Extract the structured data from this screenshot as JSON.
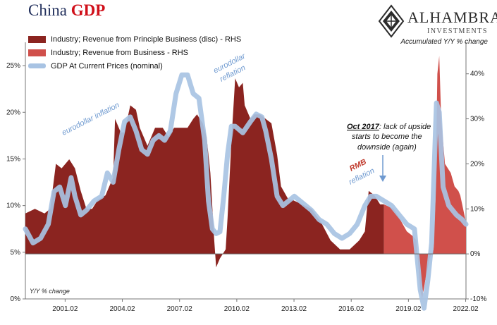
{
  "header": {
    "title_main": "China",
    "title_accent": "GDP"
  },
  "brand": {
    "name": "ALHAMBRA",
    "sub": "INVESTMENTS"
  },
  "labels": {
    "right_axis_title": "Accumulated Y/Y % change",
    "left_axis_title": "Y/Y % change"
  },
  "colors": {
    "principle_revenue": "#8b2420",
    "business_revenue": "#d0504b",
    "gdp_line": "#a8c3e3",
    "annotation_blue": "#6f9ad0",
    "annotation_red": "#c0392b",
    "title_blue": "#1f2d5a",
    "title_red": "#d0101a"
  },
  "chart_data": {
    "type": "area",
    "x_tick_labels": [
      "2001.02",
      "2004.02",
      "2007.02",
      "2010.02",
      "2013.02",
      "2016.02",
      "2019.02",
      "2022.02"
    ],
    "x_range": [
      1999.0,
      2022.1
    ],
    "y_left": {
      "ticks": [
        "0%",
        "5%",
        "10%",
        "15%",
        "20%",
        "25%"
      ],
      "range": [
        0,
        27.5
      ]
    },
    "y_right": {
      "ticks": [
        "-10%",
        "0%",
        "10%",
        "20%",
        "30%",
        "40%"
      ],
      "range": [
        -10,
        47
      ]
    },
    "grid": false,
    "legend_position": "top-left",
    "series": [
      {
        "name": "Industry; Revenue from Principle Business (disc) - RHS",
        "axis": "right",
        "style": "area",
        "points": [
          [
            1999.0,
            9.0
          ],
          [
            1999.5,
            10.0
          ],
          [
            2000.0,
            9.0
          ],
          [
            2000.3,
            10.0
          ],
          [
            2000.6,
            20.0
          ],
          [
            2000.9,
            19.0
          ],
          [
            2001.3,
            21.0
          ],
          [
            2001.6,
            19.0
          ],
          [
            2001.9,
            14.0
          ],
          [
            2002.2,
            10.0
          ],
          [
            2002.5,
            10.0
          ],
          [
            2002.8,
            12.0
          ],
          [
            2003.2,
            13.0
          ],
          [
            2003.6,
            17.0
          ],
          [
            2003.7,
            30.0
          ],
          [
            2004.0,
            27.0
          ],
          [
            2004.2,
            27.0
          ],
          [
            2004.5,
            33.0
          ],
          [
            2004.8,
            32.0
          ],
          [
            2005.0,
            28.0
          ],
          [
            2005.4,
            24.0
          ],
          [
            2005.8,
            28.0
          ],
          [
            2006.2,
            28.0
          ],
          [
            2006.5,
            26.0
          ],
          [
            2006.8,
            28.0
          ],
          [
            2007.2,
            28.0
          ],
          [
            2007.5,
            28.0
          ],
          [
            2007.8,
            30.0
          ],
          [
            2008.0,
            31.0
          ],
          [
            2008.3,
            29.0
          ],
          [
            2008.5,
            26.0
          ],
          [
            2008.7,
            18.0
          ],
          [
            2008.9,
            3.0
          ],
          [
            2009.0,
            -3.0
          ],
          [
            2009.2,
            -1.0
          ],
          [
            2009.5,
            1.0
          ],
          [
            2009.6,
            8.0
          ],
          [
            2009.8,
            25.0
          ],
          [
            2010.0,
            39.0
          ],
          [
            2010.2,
            37.0
          ],
          [
            2010.4,
            38.0
          ],
          [
            2010.5,
            33.0
          ],
          [
            2010.8,
            30.0
          ],
          [
            2011.0,
            31.0
          ],
          [
            2011.3,
            31.0
          ],
          [
            2011.6,
            30.0
          ],
          [
            2011.9,
            29.0
          ],
          [
            2012.2,
            22.0
          ],
          [
            2012.4,
            15.0
          ],
          [
            2012.8,
            12.0
          ],
          [
            2013.0,
            12.0
          ],
          [
            2013.5,
            11.0
          ],
          [
            2014.0,
            10.0
          ],
          [
            2014.5,
            7.0
          ],
          [
            2015.0,
            3.0
          ],
          [
            2015.5,
            1.0
          ],
          [
            2016.0,
            1.0
          ],
          [
            2016.5,
            3.0
          ],
          [
            2016.8,
            5.0
          ],
          [
            2017.0,
            14.0
          ],
          [
            2017.3,
            13.0
          ],
          [
            2017.6,
            11.0
          ],
          [
            2017.8,
            11.0
          ]
        ]
      },
      {
        "name": "Industry; Revenue from Business - RHS",
        "axis": "right",
        "style": "area",
        "points": [
          [
            2017.8,
            11.0
          ],
          [
            2018.3,
            10.0
          ],
          [
            2018.6,
            8.0
          ],
          [
            2019.0,
            5.0
          ],
          [
            2019.3,
            4.0
          ],
          [
            2019.5,
            3.0
          ],
          [
            2019.7,
            -8.0
          ],
          [
            2019.8,
            -10.0
          ],
          [
            2020.0,
            -5.0
          ],
          [
            2020.2,
            -1.0
          ],
          [
            2020.4,
            1.0
          ],
          [
            2020.5,
            12.0
          ],
          [
            2020.6,
            40.0
          ],
          [
            2020.7,
            44.0
          ],
          [
            2020.8,
            30.0
          ],
          [
            2021.0,
            20.0
          ],
          [
            2021.3,
            18.0
          ],
          [
            2021.5,
            15.0
          ],
          [
            2021.7,
            14.0
          ],
          [
            2021.8,
            13.0
          ],
          [
            2021.9,
            11.0
          ],
          [
            2022.0,
            9.0
          ],
          [
            2022.1,
            7.0
          ]
        ]
      },
      {
        "name": "GDP At Current Prices (nominal)",
        "axis": "left",
        "style": "line",
        "points": [
          [
            1999.0,
            7.5
          ],
          [
            1999.4,
            6.0
          ],
          [
            1999.8,
            6.5
          ],
          [
            2000.2,
            8.0
          ],
          [
            2000.5,
            11.5
          ],
          [
            2000.8,
            12.0
          ],
          [
            2001.1,
            10.0
          ],
          [
            2001.4,
            13.0
          ],
          [
            2001.6,
            11.0
          ],
          [
            2001.9,
            9.0
          ],
          [
            2002.2,
            9.5
          ],
          [
            2002.6,
            10.5
          ],
          [
            2003.0,
            11.0
          ],
          [
            2003.3,
            13.5
          ],
          [
            2003.6,
            12.5
          ],
          [
            2003.9,
            16.0
          ],
          [
            2004.2,
            19.0
          ],
          [
            2004.5,
            19.5
          ],
          [
            2004.8,
            18.0
          ],
          [
            2005.1,
            16.0
          ],
          [
            2005.4,
            15.5
          ],
          [
            2005.7,
            17.0
          ],
          [
            2006.0,
            17.5
          ],
          [
            2006.3,
            17.0
          ],
          [
            2006.6,
            18.0
          ],
          [
            2006.9,
            22.0
          ],
          [
            2007.2,
            24.0
          ],
          [
            2007.5,
            24.0
          ],
          [
            2007.8,
            22.0
          ],
          [
            2008.1,
            21.5
          ],
          [
            2008.4,
            17.0
          ],
          [
            2008.6,
            10.5
          ],
          [
            2008.8,
            7.5
          ],
          [
            2009.0,
            7.0
          ],
          [
            2009.2,
            7.2
          ],
          [
            2009.4,
            11.0
          ],
          [
            2009.6,
            15.5
          ],
          [
            2009.8,
            18.5
          ],
          [
            2010.0,
            18.5
          ],
          [
            2010.4,
            17.8
          ],
          [
            2010.8,
            19.0
          ],
          [
            2011.1,
            19.8
          ],
          [
            2011.4,
            19.5
          ],
          [
            2011.6,
            18.0
          ],
          [
            2011.9,
            15.0
          ],
          [
            2012.2,
            11.0
          ],
          [
            2012.5,
            10.0
          ],
          [
            2012.8,
            10.5
          ],
          [
            2013.1,
            11.0
          ],
          [
            2013.4,
            10.5
          ],
          [
            2013.7,
            10.0
          ],
          [
            2014.0,
            9.5
          ],
          [
            2014.4,
            8.5
          ],
          [
            2014.8,
            8.0
          ],
          [
            2015.2,
            7.0
          ],
          [
            2015.6,
            6.5
          ],
          [
            2016.0,
            7.0
          ],
          [
            2016.4,
            8.0
          ],
          [
            2016.8,
            10.0
          ],
          [
            2017.1,
            11.0
          ],
          [
            2017.4,
            11.0
          ],
          [
            2017.8,
            10.5
          ],
          [
            2018.2,
            10.0
          ],
          [
            2018.6,
            9.0
          ],
          [
            2019.0,
            8.0
          ],
          [
            2019.4,
            7.5
          ],
          [
            2019.7,
            1.0
          ],
          [
            2019.9,
            -1.0
          ],
          [
            2020.1,
            2.0
          ],
          [
            2020.3,
            6.0
          ],
          [
            2020.55,
            21.0
          ],
          [
            2020.7,
            20.0
          ],
          [
            2020.9,
            12.0
          ],
          [
            2021.2,
            10.0
          ],
          [
            2021.6,
            9.0
          ],
          [
            2021.9,
            8.5
          ],
          [
            2022.1,
            8.0
          ]
        ]
      }
    ],
    "annotations": {
      "eurodollar_inflation": "eurodollar inflation",
      "eurodollar_reflation_1": "eurodollar",
      "eurodollar_reflation_2": "reflation",
      "oct_2017_bold": "Oct 2017",
      "oct_2017_rest": ": lack of upside",
      "oct_2017_line2": "starts to become the",
      "oct_2017_line3": "downside (again)",
      "rmb": "RMB",
      "rmb_reflation": "reflation"
    }
  }
}
